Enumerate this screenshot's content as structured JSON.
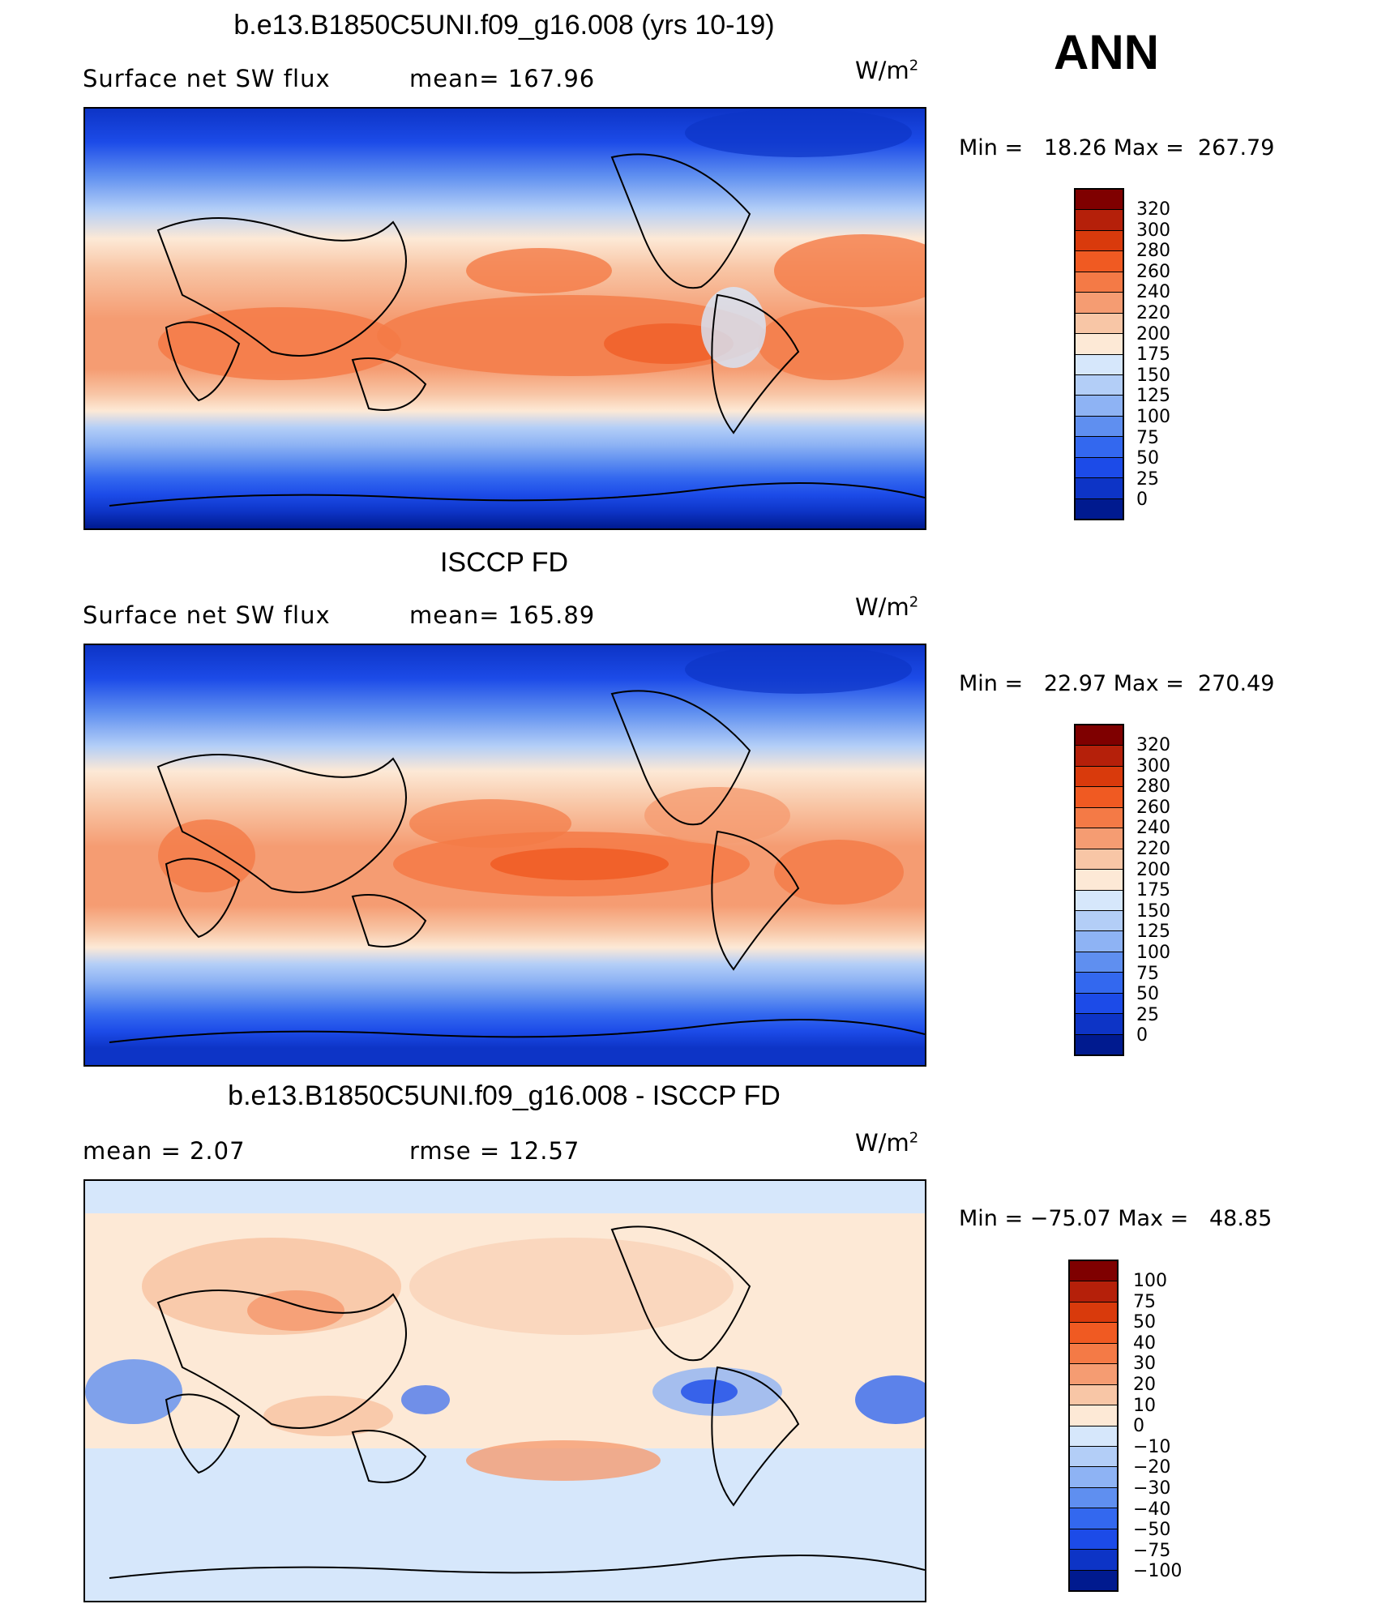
{
  "season": "ANN",
  "units": "W/m",
  "units_exp": "2",
  "panels": [
    {
      "title": "b.e13.B1850C5UNI.f09_g16.008 (yrs 10-19)",
      "left_label": "Surface net SW flux",
      "right_label": "mean=  167.96",
      "minmax": "Min =   18.26 Max =  267.79",
      "levels": [
        "320",
        "300",
        "280",
        "260",
        "240",
        "220",
        "200",
        "175",
        "150",
        "125",
        "100",
        "75",
        "50",
        "25",
        "0"
      ],
      "colors": [
        "#7f0000",
        "#b5200a",
        "#d93a0c",
        "#f05a22",
        "#f47a46",
        "#f59c72",
        "#f8c6a6",
        "#fde9d6",
        "#d6e7fb",
        "#b3cef7",
        "#8eb3f4",
        "#5f8ff0",
        "#3368ef",
        "#1c4be8",
        "#0d34c6",
        "#001a8f"
      ]
    },
    {
      "title": "ISCCP FD",
      "left_label": "Surface net SW flux",
      "right_label": "mean=  165.89",
      "minmax": "Min =   22.97 Max =  270.49",
      "levels": [
        "320",
        "300",
        "280",
        "260",
        "240",
        "220",
        "200",
        "175",
        "150",
        "125",
        "100",
        "75",
        "50",
        "25",
        "0"
      ],
      "colors": [
        "#7f0000",
        "#b5200a",
        "#d93a0c",
        "#f05a22",
        "#f47a46",
        "#f59c72",
        "#f8c6a6",
        "#fde9d6",
        "#d6e7fb",
        "#b3cef7",
        "#8eb3f4",
        "#5f8ff0",
        "#3368ef",
        "#1c4be8",
        "#0d34c6",
        "#001a8f"
      ]
    },
    {
      "title": "b.e13.B1850C5UNI.f09_g16.008 - ISCCP FD",
      "left_label": "mean =    2.07",
      "right_label": "rmse =   12.57",
      "minmax": "Min = −75.07 Max =   48.85",
      "levels": [
        "100",
        "75",
        "50",
        "40",
        "30",
        "20",
        "10",
        "0",
        "−10",
        "−20",
        "−30",
        "−40",
        "−50",
        "−75",
        "−100"
      ],
      "colors": [
        "#7f0000",
        "#b5200a",
        "#d93a0c",
        "#f05a22",
        "#f47a46",
        "#f59c72",
        "#f8c6a6",
        "#fde9d6",
        "#d6e7fb",
        "#b3cef7",
        "#8eb3f4",
        "#5f8ff0",
        "#3368ef",
        "#1c4be8",
        "#0d34c6",
        "#001a8f"
      ]
    }
  ]
}
